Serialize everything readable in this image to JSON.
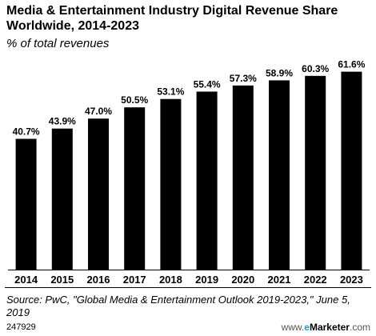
{
  "chart_data": {
    "type": "bar",
    "title": "Media & Entertainment Industry Digital Revenue Share Worldwide, 2014-2023",
    "subtitle": "% of total revenues",
    "categories": [
      "2014",
      "2015",
      "2016",
      "2017",
      "2018",
      "2019",
      "2020",
      "2021",
      "2022",
      "2023"
    ],
    "values": [
      40.7,
      43.9,
      47.0,
      50.5,
      53.1,
      55.4,
      57.3,
      58.9,
      60.3,
      61.6
    ],
    "value_labels": [
      "40.7%",
      "43.9%",
      "47.0%",
      "50.5%",
      "53.1%",
      "55.4%",
      "57.3%",
      "58.9%",
      "60.3%",
      "61.6%"
    ],
    "ylim": [
      0,
      62
    ],
    "bar_color": "#000000",
    "grid": false,
    "legend": "none"
  },
  "source": "Source: PwC, \"Global Media & Entertainment Outlook 2019-2023,\" June 5, 2019",
  "chart_id": "247929",
  "brand": {
    "www": "www.",
    "e": "e",
    "rest": "Marketer",
    "dom": ".com"
  },
  "colors": {
    "accent": "#1a9ad6"
  }
}
